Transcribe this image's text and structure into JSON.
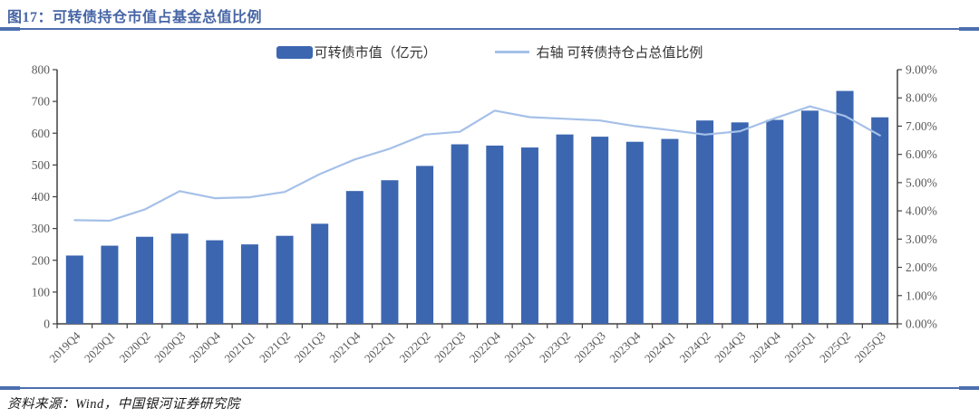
{
  "header": {
    "title": "图17：可转债持仓市值占基金总值比例"
  },
  "legend": {
    "bar_label": "可转债市值（亿元）",
    "line_label": "右轴 可转债持仓占总值比例"
  },
  "footer": {
    "source": "资料来源：Wind，中国银河证券研究院"
  },
  "colors": {
    "bar": "#3C66B0",
    "line": "#A5C0E8",
    "rule": "#4C6FAF",
    "title": "#4766A6",
    "axis": "#404040",
    "tick_text": "#595959"
  },
  "chart_data": {
    "type": "combo_bar_line",
    "title": "图17：可转债持仓市值占基金总值比例",
    "legend_position": "top",
    "grid": false,
    "categories": [
      "2019Q4",
      "2020Q1",
      "2020Q2",
      "2020Q3",
      "2020Q4",
      "2021Q1",
      "2021Q2",
      "2021Q3",
      "2021Q4",
      "2022Q1",
      "2022Q2",
      "2022Q3",
      "2022Q4",
      "2023Q1",
      "2023Q2",
      "2023Q3",
      "2023Q4",
      "2024Q1",
      "2024Q2",
      "2024Q3",
      "2024Q4",
      "2025Q1",
      "2025Q2",
      "2025Q3"
    ],
    "series": [
      {
        "name": "可转债市值（亿元）",
        "type": "bar",
        "axis": "left",
        "color": "#3C66B0",
        "values": [
          215,
          246,
          274,
          284,
          263,
          250,
          277,
          315,
          418,
          452,
          497,
          565,
          561,
          555,
          596,
          589,
          573,
          582,
          640,
          634,
          642,
          671,
          733,
          650
        ]
      },
      {
        "name": "右轴 可转债持仓占总值比例",
        "type": "line",
        "axis": "right",
        "color": "#A5C0E8",
        "values": [
          3.67,
          3.65,
          4.05,
          4.7,
          4.45,
          4.48,
          4.67,
          5.3,
          5.82,
          6.2,
          6.7,
          6.8,
          7.55,
          7.32,
          7.26,
          7.2,
          7.0,
          6.86,
          6.7,
          6.82,
          7.28,
          7.7,
          7.36,
          6.67
        ]
      }
    ],
    "left_axis": {
      "min": 0,
      "max": 800,
      "step": 100,
      "tick_labels": [
        "0",
        "100",
        "200",
        "300",
        "400",
        "500",
        "600",
        "700",
        "800"
      ]
    },
    "right_axis": {
      "min": 0,
      "max": 9,
      "step": 1,
      "tick_labels": [
        "0.00%",
        "1.00%",
        "2.00%",
        "3.00%",
        "4.00%",
        "5.00%",
        "6.00%",
        "7.00%",
        "8.00%",
        "9.00%"
      ]
    }
  }
}
